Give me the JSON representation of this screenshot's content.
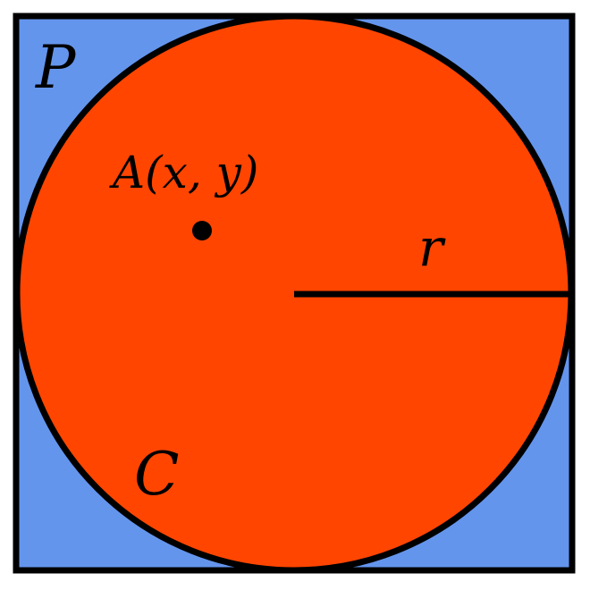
{
  "colors": {
    "square_fill": "#6495ED",
    "circle_fill": "#FF4500",
    "stroke": "#000000",
    "background": "#FFFFFF"
  },
  "labels": {
    "square": "P",
    "circle": "C",
    "point": "A(x, y)",
    "radius": "r"
  }
}
